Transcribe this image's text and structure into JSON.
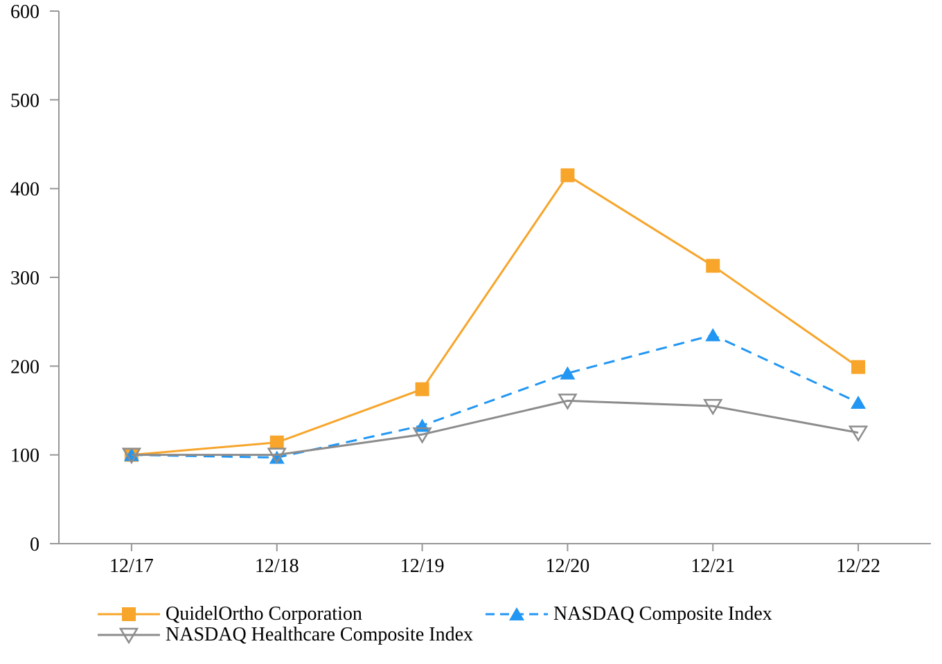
{
  "chart_data": {
    "type": "line",
    "title": "",
    "xlabel": "",
    "ylabel": "",
    "categories": [
      "12/17",
      "12/18",
      "12/19",
      "12/20",
      "12/21",
      "12/22"
    ],
    "series": [
      {
        "name": "QuidelOrtho Corporation",
        "values": [
          100,
          114,
          174,
          415,
          313,
          199
        ],
        "color": "#F7A52B",
        "line_style": "solid",
        "marker": "square-filled"
      },
      {
        "name": "NASDAQ Composite Index",
        "values": [
          100,
          97,
          133,
          192,
          235,
          159
        ],
        "color": "#2196F3",
        "line_style": "dashed",
        "marker": "triangle-up-filled"
      },
      {
        "name": "NASDAQ Healthcare Composite Index",
        "values": [
          100,
          100,
          123,
          161,
          155,
          125
        ],
        "color": "#8C8C8C",
        "line_style": "solid",
        "marker": "triangle-down-open"
      }
    ],
    "ylim": [
      0,
      600
    ],
    "yticks": [
      0,
      100,
      200,
      300,
      400,
      500,
      600
    ],
    "grid": false,
    "legend_position": "bottom",
    "axis_color": "#969696",
    "text_color": "#000000",
    "background": "#FFFFFF"
  }
}
